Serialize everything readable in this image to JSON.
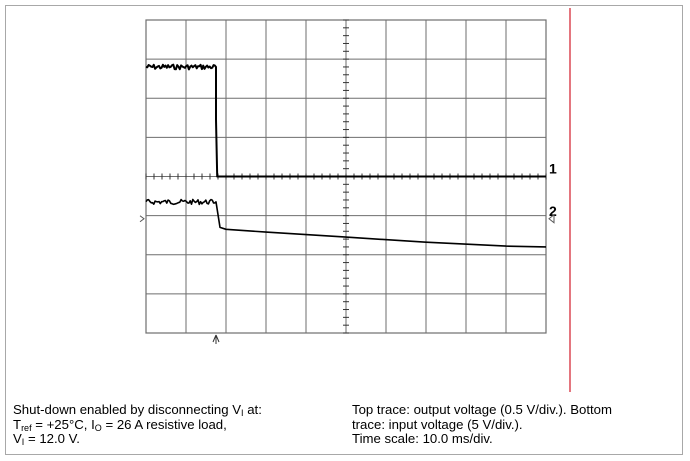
{
  "chart_data": {
    "type": "line",
    "title": "",
    "xlabel": "",
    "ylabel": "",
    "grid": true,
    "x_divisions": 10,
    "y_divisions": 8,
    "x_unit": "div",
    "y_unit": "div",
    "x_range": [
      0,
      10
    ],
    "y_range": [
      -4,
      4
    ],
    "trigger_marker_x": 1.75,
    "series": [
      {
        "channel_label": "1",
        "marker_side": "right",
        "reference_level": 0,
        "x": [
          0.0,
          1.75,
          1.75,
          1.78,
          10.0
        ],
        "y": [
          2.8,
          2.8,
          1.45,
          0.0,
          0.0
        ]
      },
      {
        "channel_label": "2",
        "marker_side": "right",
        "reference_level": -1.08,
        "x": [
          0.0,
          1.75,
          1.85,
          2.0,
          3.0,
          5.0,
          7.0,
          9.0,
          10.0
        ],
        "y": [
          -0.65,
          -0.65,
          -1.3,
          -1.35,
          -1.42,
          -1.55,
          -1.68,
          -1.78,
          -1.8
        ]
      }
    ],
    "noise_segments": [
      {
        "series": 0,
        "x_end": 1.75
      },
      {
        "series": 1,
        "x_end": 1.75
      }
    ],
    "cursor_line_x": 10.6,
    "colors": {
      "grid": "#6e6e6e",
      "trace": "#000000",
      "cursor": "#d11a2a"
    }
  },
  "captions": {
    "left": {
      "line1_a": "Shut-down enabled by disconnecting V",
      "line1_sub": "I",
      "line1_b": " at:",
      "line2_a": "T",
      "line2_sub1": "ref",
      "line2_b": " = +25°C, I",
      "line2_sub2": "O",
      "line2_c": " = 26 A resistive load,",
      "line3_a": "V",
      "line3_sub": "I",
      "line3_b": " = 12.0 V."
    },
    "right": {
      "line1": "Top trace: output voltage (0.5 V/div.). Bottom",
      "line2": "trace: input voltage (5 V/div.).",
      "line3": "Time scale: 10.0 ms/div."
    }
  }
}
